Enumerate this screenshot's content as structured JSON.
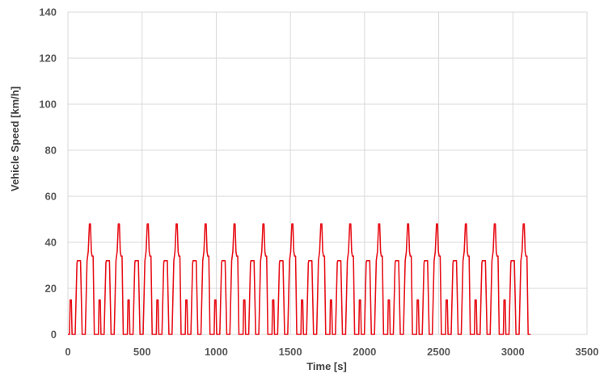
{
  "chart_data": {
    "type": "line",
    "xlabel": "Time [s]",
    "ylabel": "Vehicle Speed [km/h]",
    "xlim": [
      0,
      3500
    ],
    "ylim": [
      0,
      140
    ],
    "x_ticks": [
      0,
      500,
      1000,
      1500,
      2000,
      2500,
      3000,
      3500
    ],
    "y_ticks": [
      0,
      20,
      40,
      60,
      80,
      100,
      120,
      140
    ],
    "grid": true,
    "series": [
      {
        "color": "#e8141c",
        "cycle": {
          "period": 195,
          "repeats": 16,
          "profile": [
            [
              0,
              0
            ],
            [
              11,
              0
            ],
            [
              15,
              15
            ],
            [
              23,
              15
            ],
            [
              28,
              0
            ],
            [
              49,
              0
            ],
            [
              61,
              31
            ],
            [
              64,
              32
            ],
            [
              85,
              32
            ],
            [
              96,
              0
            ],
            [
              117,
              0
            ],
            [
              129,
              32
            ],
            [
              137,
              36
            ],
            [
              145,
              48
            ],
            [
              152,
              48
            ],
            [
              158,
              36
            ],
            [
              163,
              34
            ],
            [
              170,
              34
            ],
            [
              178,
              0
            ],
            [
              195,
              0
            ]
          ]
        },
        "total_duration": 3120
      }
    ]
  }
}
